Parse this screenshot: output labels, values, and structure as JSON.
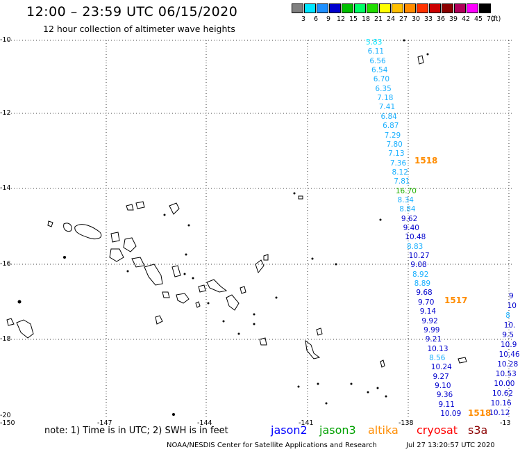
{
  "header": {
    "title": "12:00 – 23:59 UTC 06/15/2020",
    "subtitle": "12 hour collection of altimeter wave heights"
  },
  "color_scale": {
    "unit": "(ft)",
    "bins": [
      {
        "label": "3",
        "color": "#808080"
      },
      {
        "label": "6",
        "color": "#00e5ff"
      },
      {
        "label": "9",
        "color": "#1e90ff"
      },
      {
        "label": "12",
        "color": "#0000cd"
      },
      {
        "label": "15",
        "color": "#00c000"
      },
      {
        "label": "18",
        "color": "#00ff66"
      },
      {
        "label": "21",
        "color": "#22dd00"
      },
      {
        "label": "24",
        "color": "#ffff00"
      },
      {
        "label": "27",
        "color": "#ffc000"
      },
      {
        "label": "30",
        "color": "#ff8c00"
      },
      {
        "label": "33",
        "color": "#ff3300"
      },
      {
        "label": "36",
        "color": "#cc0000"
      },
      {
        "label": "39",
        "color": "#8b0000"
      },
      {
        "label": "42",
        "color": "#b0005a"
      },
      {
        "label": "45",
        "color": "#ff00ff"
      },
      {
        "label": "70",
        "color": "#000000"
      }
    ]
  },
  "axes": {
    "lat_labels": [
      "-10",
      "-12",
      "-14",
      "-16",
      "-18",
      "-20"
    ],
    "lon_labels": [
      "-150",
      "-147",
      "-144",
      "-141",
      "-138",
      "-13"
    ]
  },
  "tracks": [
    {
      "label": "1518",
      "color": "#ff8c00"
    },
    {
      "label": "1517",
      "color": "#ff8c00"
    },
    {
      "label": "1518",
      "color": "#ff8c00"
    }
  ],
  "track_main": [
    {
      "v": "5.83",
      "c": "#00e5ff"
    },
    {
      "v": "6.11",
      "c": "#1ab0ff"
    },
    {
      "v": "6.56",
      "c": "#1ab0ff"
    },
    {
      "v": "6.54",
      "c": "#1ab0ff"
    },
    {
      "v": "6.70",
      "c": "#1ab0ff"
    },
    {
      "v": "6.35",
      "c": "#1ab0ff"
    },
    {
      "v": "7.18",
      "c": "#1ab0ff"
    },
    {
      "v": "7.41",
      "c": "#1ab0ff"
    },
    {
      "v": "6.84",
      "c": "#1ab0ff"
    },
    {
      "v": "6.87",
      "c": "#1ab0ff"
    },
    {
      "v": "7.29",
      "c": "#1ab0ff"
    },
    {
      "v": "7.80",
      "c": "#1ab0ff"
    },
    {
      "v": "7.13",
      "c": "#1ab0ff"
    },
    {
      "v": "7.36",
      "c": "#1ab0ff"
    },
    {
      "v": "8.12",
      "c": "#1ab0ff"
    },
    {
      "v": "7.81",
      "c": "#1ab0ff"
    },
    {
      "v": "16.70",
      "c": "#22b000"
    },
    {
      "v": "8.34",
      "c": "#1ab0ff"
    },
    {
      "v": "8.84",
      "c": "#1ab0ff"
    },
    {
      "v": "9.62",
      "c": "#0000cd"
    },
    {
      "v": "9.40",
      "c": "#0000cd"
    },
    {
      "v": "10.48",
      "c": "#0000cd"
    },
    {
      "v": "8.83",
      "c": "#1ab0ff"
    },
    {
      "v": "10.27",
      "c": "#0000cd"
    },
    {
      "v": "9.08",
      "c": "#0000cd"
    },
    {
      "v": "8.92",
      "c": "#1ab0ff"
    },
    {
      "v": "8.89",
      "c": "#1ab0ff"
    },
    {
      "v": "9.68",
      "c": "#0000cd"
    },
    {
      "v": "9.70",
      "c": "#0000cd"
    },
    {
      "v": "9.14",
      "c": "#0000cd"
    },
    {
      "v": "9.92",
      "c": "#0000cd"
    },
    {
      "v": "9.99",
      "c": "#0000cd"
    },
    {
      "v": "9.21",
      "c": "#0000cd"
    },
    {
      "v": "10.13",
      "c": "#0000cd"
    },
    {
      "v": "8.56",
      "c": "#1ab0ff"
    },
    {
      "v": "10.24",
      "c": "#0000cd"
    },
    {
      "v": "9.27",
      "c": "#0000cd"
    },
    {
      "v": "9.10",
      "c": "#0000cd"
    },
    {
      "v": "9.36",
      "c": "#0000cd"
    },
    {
      "v": "9.11",
      "c": "#0000cd"
    },
    {
      "v": "10.09",
      "c": "#0000cd"
    }
  ],
  "track_right": [
    {
      "v": "9",
      "c": "#0000cd"
    },
    {
      "v": "10",
      "c": "#0000cd"
    },
    {
      "v": "8",
      "c": "#1ab0ff"
    },
    {
      "v": "10.",
      "c": "#0000cd"
    },
    {
      "v": "9.5",
      "c": "#0000cd"
    },
    {
      "v": "10.9",
      "c": "#0000cd"
    },
    {
      "v": "10.46",
      "c": "#0000cd"
    },
    {
      "v": "10.28",
      "c": "#0000cd"
    },
    {
      "v": "10.53",
      "c": "#0000cd"
    },
    {
      "v": "10.00",
      "c": "#0000cd"
    },
    {
      "v": "10.62",
      "c": "#0000cd"
    },
    {
      "v": "10.16",
      "c": "#0000cd"
    },
    {
      "v": "10.12",
      "c": "#0000cd"
    }
  ],
  "footer": {
    "note": "note: 1) Time is in UTC; 2) SWH is in feet",
    "satellites": [
      {
        "name": "jason2",
        "color": "#0000ff"
      },
      {
        "name": "jason3",
        "color": "#00a000"
      },
      {
        "name": "altika",
        "color": "#ff8c00"
      },
      {
        "name": "cryosat",
        "color": "#ff0000"
      },
      {
        "name": "s3a",
        "color": "#8b0000"
      }
    ],
    "credit": "NOAA/NESDIS Center for Satellite Applications and Research",
    "timestamp": "Jul 27 13:20:57 UTC 2020"
  }
}
